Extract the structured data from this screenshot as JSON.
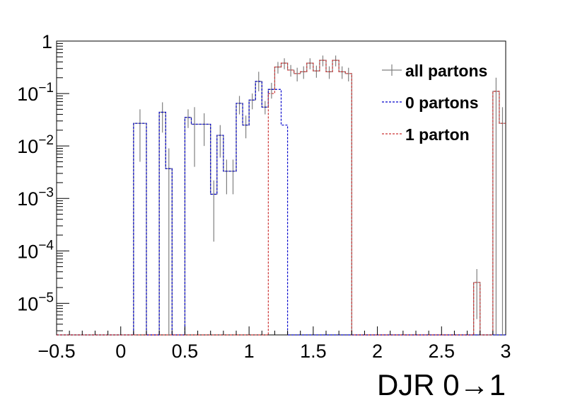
{
  "chart_data": {
    "type": "histogram",
    "xlabel": "DJR 0→1",
    "ylabel": "",
    "x_scale": "linear",
    "y_scale": "log",
    "xlim": [
      -0.5,
      3.0
    ],
    "ylim": [
      2.5e-06,
      1.0
    ],
    "x_ticks": [
      -0.5,
      0,
      0.5,
      1,
      1.5,
      2,
      2.5,
      3
    ],
    "x_tick_labels": [
      "−0.5",
      "0",
      "0.5",
      "1",
      "1.5",
      "2",
      "2.5",
      "3"
    ],
    "y_ticks": [
      {
        "value": 1,
        "base": "1",
        "exp": ""
      },
      {
        "value": 0.1,
        "base": "10",
        "exp": "−1"
      },
      {
        "value": 0.01,
        "base": "10",
        "exp": "−2"
      },
      {
        "value": 0.001,
        "base": "10",
        "exp": "−3"
      },
      {
        "value": 0.0001,
        "base": "10",
        "exp": "−4"
      },
      {
        "value": 1e-05,
        "base": "10",
        "exp": "−5"
      }
    ],
    "bin_edges": [
      -0.5,
      -0.45,
      -0.4,
      -0.35,
      -0.3,
      -0.25,
      -0.2,
      -0.15,
      -0.1,
      -0.05,
      0.0,
      0.05,
      0.1,
      0.15,
      0.2,
      0.25,
      0.3,
      0.35,
      0.4,
      0.45,
      0.5,
      0.55,
      0.6,
      0.65,
      0.7,
      0.75,
      0.8,
      0.85,
      0.9,
      0.95,
      1.0,
      1.05,
      1.1,
      1.15,
      1.2,
      1.25,
      1.3,
      1.35,
      1.4,
      1.45,
      1.5,
      1.55,
      1.6,
      1.65,
      1.7,
      1.75,
      1.8,
      1.85,
      1.9,
      1.95,
      2.0,
      2.05,
      2.1,
      2.15,
      2.2,
      2.25,
      2.3,
      2.35,
      2.4,
      2.45,
      2.5,
      2.55,
      2.6,
      2.65,
      2.7,
      2.75,
      2.8,
      2.85,
      2.9,
      2.95,
      3.0
    ],
    "series": [
      {
        "name": "all partons",
        "color": "#808080",
        "line": "solid",
        "bins": [
          {
            "x0": 0.1,
            "x1": 0.2,
            "y": 0.027,
            "err_lo": 0.005,
            "err_hi": 0.05
          },
          {
            "x0": 0.2,
            "x1": 0.3,
            "y": 0.0,
            "err_lo": 0,
            "err_hi": 0
          },
          {
            "x0": 0.3,
            "x1": 0.35,
            "y": 0.044,
            "err_lo": 0.018,
            "err_hi": 0.068
          },
          {
            "x0": 0.35,
            "x1": 0.4,
            "y": 0.0037,
            "err_lo": 0.0,
            "err_hi": 0.009
          },
          {
            "x0": 0.5,
            "x1": 0.55,
            "y": 0.035,
            "err_lo": 0.022,
            "err_hi": 0.05
          },
          {
            "x0": 0.55,
            "x1": 0.6,
            "y": 0.026,
            "err_lo": 0.004,
            "err_hi": 0.055
          },
          {
            "x0": 0.6,
            "x1": 0.7,
            "y": 0.026,
            "err_lo": 0.01,
            "err_hi": 0.042
          },
          {
            "x0": 0.7,
            "x1": 0.75,
            "y": 0.0012,
            "err_lo": 0.00015,
            "err_hi": 0.0022
          },
          {
            "x0": 0.75,
            "x1": 0.8,
            "y": 0.016,
            "err_lo": 0.006,
            "err_hi": 0.025
          },
          {
            "x0": 0.8,
            "x1": 0.85,
            "y": 0.0033,
            "err_lo": 0.0012,
            "err_hi": 0.0055
          },
          {
            "x0": 0.85,
            "x1": 0.9,
            "y": 0.0033,
            "err_lo": 0.0012,
            "err_hi": 0.0055
          },
          {
            "x0": 0.9,
            "x1": 0.95,
            "y": 0.065,
            "err_lo": 0.04,
            "err_hi": 0.09
          },
          {
            "x0": 0.95,
            "x1": 1.0,
            "y": 0.025,
            "err_lo": 0.014,
            "err_hi": 0.038
          },
          {
            "x0": 1.0,
            "x1": 1.05,
            "y": 0.075,
            "err_lo": 0.05,
            "err_hi": 0.1
          },
          {
            "x0": 1.05,
            "x1": 1.1,
            "y": 0.17,
            "err_lo": 0.11,
            "err_hi": 0.26
          },
          {
            "x0": 1.1,
            "x1": 1.15,
            "y": 0.055,
            "err_lo": 0.04,
            "err_hi": 0.072
          },
          {
            "x0": 1.15,
            "x1": 1.2,
            "y": 0.12,
            "err_lo": 0.08,
            "err_hi": 0.16
          },
          {
            "x0": 1.2,
            "x1": 1.25,
            "y": 0.32,
            "err_lo": 0.24,
            "err_hi": 0.4
          },
          {
            "x0": 1.25,
            "x1": 1.3,
            "y": 0.38,
            "err_lo": 0.29,
            "err_hi": 0.47
          },
          {
            "x0": 1.3,
            "x1": 1.35,
            "y": 0.28,
            "err_lo": 0.21,
            "err_hi": 0.35
          },
          {
            "x0": 1.35,
            "x1": 1.4,
            "y": 0.24,
            "err_lo": 0.17,
            "err_hi": 0.31
          },
          {
            "x0": 1.4,
            "x1": 1.45,
            "y": 0.26,
            "err_lo": 0.19,
            "err_hi": 0.33
          },
          {
            "x0": 1.45,
            "x1": 1.5,
            "y": 0.38,
            "err_lo": 0.29,
            "err_hi": 0.47
          },
          {
            "x0": 1.5,
            "x1": 1.55,
            "y": 0.27,
            "err_lo": 0.2,
            "err_hi": 0.34
          },
          {
            "x0": 1.55,
            "x1": 1.6,
            "y": 0.43,
            "err_lo": 0.33,
            "err_hi": 0.53
          },
          {
            "x0": 1.6,
            "x1": 1.65,
            "y": 0.26,
            "err_lo": 0.19,
            "err_hi": 0.33
          },
          {
            "x0": 1.65,
            "x1": 1.7,
            "y": 0.43,
            "err_lo": 0.33,
            "err_hi": 0.53
          },
          {
            "x0": 1.7,
            "x1": 1.75,
            "y": 0.26,
            "err_lo": 0.19,
            "err_hi": 0.33
          },
          {
            "x0": 1.75,
            "x1": 1.8,
            "y": 0.24,
            "err_lo": 0.17,
            "err_hi": 0.31
          },
          {
            "x0": 2.75,
            "x1": 2.8,
            "y": 2.5e-05,
            "err_lo": 5e-06,
            "err_hi": 4.5e-05
          },
          {
            "x0": 2.9,
            "x1": 2.95,
            "y": 0.11,
            "err_lo": 0.0,
            "err_hi": 0.2
          },
          {
            "x0": 2.95,
            "x1": 3.0,
            "y": 0.027,
            "err_lo": 0.0,
            "err_hi": 0.055
          }
        ]
      },
      {
        "name": "0 partons",
        "color": "#0000cc",
        "line": "dashed",
        "bins": [
          {
            "x0": 0.1,
            "x1": 0.2,
            "y": 0.027
          },
          {
            "x0": 0.3,
            "x1": 0.35,
            "y": 0.044
          },
          {
            "x0": 0.35,
            "x1": 0.4,
            "y": 0.0037
          },
          {
            "x0": 0.5,
            "x1": 0.55,
            "y": 0.035
          },
          {
            "x0": 0.55,
            "x1": 0.6,
            "y": 0.026
          },
          {
            "x0": 0.6,
            "x1": 0.7,
            "y": 0.026
          },
          {
            "x0": 0.7,
            "x1": 0.75,
            "y": 0.0012
          },
          {
            "x0": 0.75,
            "x1": 0.8,
            "y": 0.016
          },
          {
            "x0": 0.8,
            "x1": 0.9,
            "y": 0.0033
          },
          {
            "x0": 0.9,
            "x1": 0.95,
            "y": 0.065
          },
          {
            "x0": 0.95,
            "x1": 1.0,
            "y": 0.025
          },
          {
            "x0": 1.0,
            "x1": 1.05,
            "y": 0.075
          },
          {
            "x0": 1.05,
            "x1": 1.1,
            "y": 0.17
          },
          {
            "x0": 1.1,
            "x1": 1.15,
            "y": 0.055
          },
          {
            "x0": 1.15,
            "x1": 1.2,
            "y": 0.12
          },
          {
            "x0": 1.2,
            "x1": 1.25,
            "y": 0.12
          },
          {
            "x0": 1.25,
            "x1": 1.3,
            "y": 0.025
          }
        ]
      },
      {
        "name": "1 parton",
        "color": "#cc3333",
        "line": "dashed",
        "bins": [
          {
            "x0": 1.15,
            "x1": 1.2,
            "y": 0.1
          },
          {
            "x0": 1.2,
            "x1": 1.25,
            "y": 0.32
          },
          {
            "x0": 1.25,
            "x1": 1.3,
            "y": 0.38
          },
          {
            "x0": 1.3,
            "x1": 1.35,
            "y": 0.28
          },
          {
            "x0": 1.35,
            "x1": 1.4,
            "y": 0.24
          },
          {
            "x0": 1.4,
            "x1": 1.45,
            "y": 0.26
          },
          {
            "x0": 1.45,
            "x1": 1.5,
            "y": 0.38
          },
          {
            "x0": 1.5,
            "x1": 1.55,
            "y": 0.27
          },
          {
            "x0": 1.55,
            "x1": 1.6,
            "y": 0.43
          },
          {
            "x0": 1.6,
            "x1": 1.65,
            "y": 0.26
          },
          {
            "x0": 1.65,
            "x1": 1.7,
            "y": 0.43
          },
          {
            "x0": 1.7,
            "x1": 1.75,
            "y": 0.26
          },
          {
            "x0": 1.75,
            "x1": 1.8,
            "y": 0.24
          },
          {
            "x0": 2.75,
            "x1": 2.8,
            "y": 2.5e-05
          },
          {
            "x0": 2.9,
            "x1": 2.95,
            "y": 0.11
          },
          {
            "x0": 2.95,
            "x1": 3.0,
            "y": 0.027
          }
        ]
      }
    ],
    "legend": {
      "position": "top-right",
      "entries": [
        "all partons",
        "0 partons",
        "1 parton"
      ]
    }
  }
}
